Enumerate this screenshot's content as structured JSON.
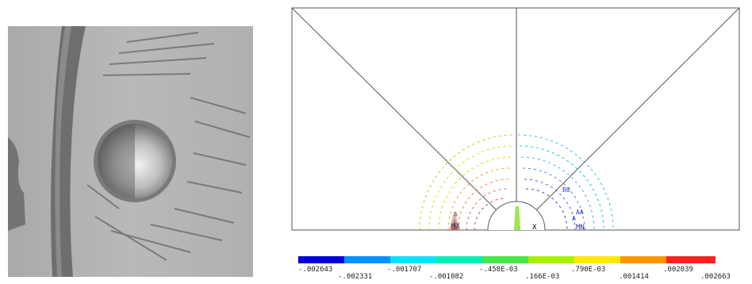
{
  "left_panel": {
    "subject": "photograph of metal specimen surface with circular hole and radial crack marks"
  },
  "fea_plot": {
    "node_markers": {
      "max": "MX",
      "min": "MN",
      "x": "X"
    },
    "contour_labels": {
      "left_inner": [
        "A"
      ],
      "right_inner": [
        "AA",
        "A",
        "B",
        "B0"
      ],
      "contour_letter": "B"
    },
    "legend": {
      "colors": [
        "#0000d8",
        "#0090ff",
        "#00e4ff",
        "#00f0b4",
        "#48e648",
        "#a8f000",
        "#ffe800",
        "#ff9600",
        "#ff2020"
      ],
      "labels_upper": [
        "-.002643",
        "-.001707",
        "-.458E-03",
        ".790E-03",
        ".002039"
      ],
      "labels_lower": [
        "-.002331",
        "-.001082",
        ".166E-03",
        ".001414",
        ".002663"
      ]
    }
  }
}
